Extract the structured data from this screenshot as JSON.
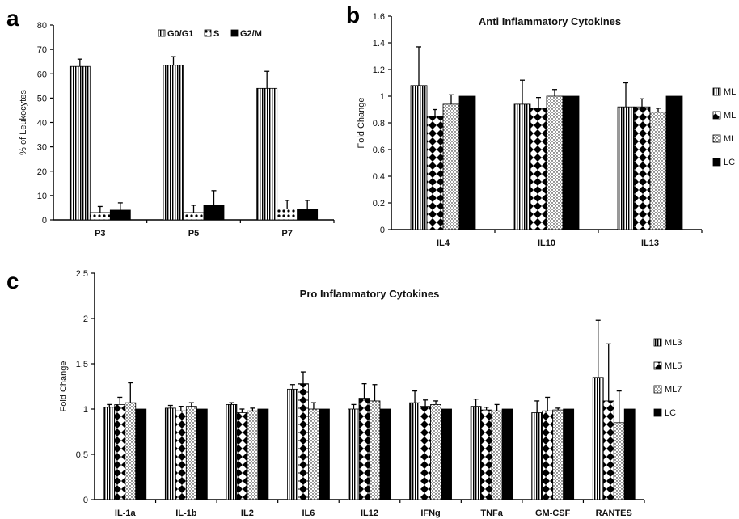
{
  "chart_data": [
    {
      "panel": "a",
      "type": "bar",
      "title": "",
      "xlabel": "",
      "ylabel": "% of Leukocytes",
      "ylim": [
        0,
        80
      ],
      "yticks": [
        0,
        10,
        20,
        30,
        40,
        50,
        60,
        70,
        80
      ],
      "categories": [
        "P3",
        "P5",
        "P7"
      ],
      "legend_position": "top-center",
      "series": [
        {
          "name": "G0/G1",
          "pattern": "vlines",
          "values": [
            63,
            63.5,
            54
          ],
          "errors": [
            3,
            3.5,
            7
          ]
        },
        {
          "name": "S",
          "pattern": "dots-white",
          "values": [
            3,
            3,
            4.5
          ],
          "errors": [
            2.5,
            3,
            3.5
          ]
        },
        {
          "name": "G2/M",
          "pattern": "solid",
          "values": [
            4,
            6,
            4.5
          ],
          "errors": [
            3,
            6,
            3.5
          ]
        }
      ]
    },
    {
      "panel": "b",
      "type": "bar",
      "title": "Anti Inflammatory Cytokines",
      "xlabel": "",
      "ylabel": "Fold Change",
      "ylim": [
        0,
        1.6
      ],
      "yticks": [
        0,
        0.2,
        0.4,
        0.6,
        0.8,
        1,
        1.2,
        1.4,
        1.6
      ],
      "categories": [
        "IL4",
        "IL10",
        "IL13"
      ],
      "legend_position": "right",
      "series": [
        {
          "name": "ML",
          "pattern": "vlines",
          "values": [
            1.08,
            0.94,
            0.92
          ],
          "errors": [
            0.29,
            0.18,
            0.18
          ]
        },
        {
          "name": "ML",
          "pattern": "diamonds",
          "values": [
            0.85,
            0.91,
            0.92
          ],
          "errors": [
            0.05,
            0.08,
            0.06
          ]
        },
        {
          "name": "ML",
          "pattern": "dots",
          "values": [
            0.94,
            1.0,
            0.88
          ],
          "errors": [
            0.07,
            0.05,
            0.03
          ]
        },
        {
          "name": "LC",
          "pattern": "solid",
          "values": [
            1,
            1,
            1
          ],
          "errors": [
            0,
            0,
            0
          ]
        }
      ]
    },
    {
      "panel": "c",
      "type": "bar",
      "title": "Pro Inflammatory Cytokines",
      "xlabel": "",
      "ylabel": "Fold Change",
      "ylim": [
        0,
        2.5
      ],
      "yticks": [
        0,
        0.5,
        1,
        1.5,
        2,
        2.5
      ],
      "categories": [
        "IL-1a",
        "IL-1b",
        "IL2",
        "IL6",
        "IL12",
        "IFNg",
        "TNFa",
        "GM-CSF",
        "RANTES"
      ],
      "legend_position": "right",
      "series": [
        {
          "name": "ML3",
          "pattern": "vlines",
          "values": [
            1.02,
            1.01,
            1.05,
            1.22,
            1.0,
            1.07,
            1.03,
            0.96,
            1.35
          ],
          "errors": [
            0.03,
            0.03,
            0.02,
            0.05,
            0.05,
            0.13,
            0.08,
            0.13,
            0.63
          ]
        },
        {
          "name": "ML5",
          "pattern": "diamonds",
          "values": [
            1.05,
            0.98,
            0.96,
            1.28,
            1.12,
            1.03,
            0.99,
            0.98,
            1.09
          ],
          "errors": [
            0.08,
            0.05,
            0.04,
            0.13,
            0.16,
            0.07,
            0.03,
            0.15,
            0.63
          ]
        },
        {
          "name": "ML7",
          "pattern": "dots",
          "values": [
            1.07,
            1.03,
            0.98,
            1.0,
            1.09,
            1.05,
            0.98,
            0.99,
            0.85
          ],
          "errors": [
            0.22,
            0.04,
            0.03,
            0.07,
            0.18,
            0.04,
            0.07,
            0.02,
            0.35
          ]
        },
        {
          "name": "LC",
          "pattern": "solid",
          "values": [
            1,
            1,
            1,
            1,
            1,
            1,
            1,
            1,
            1
          ],
          "errors": [
            0,
            0,
            0,
            0,
            0,
            0,
            0,
            0,
            0
          ]
        }
      ]
    }
  ]
}
